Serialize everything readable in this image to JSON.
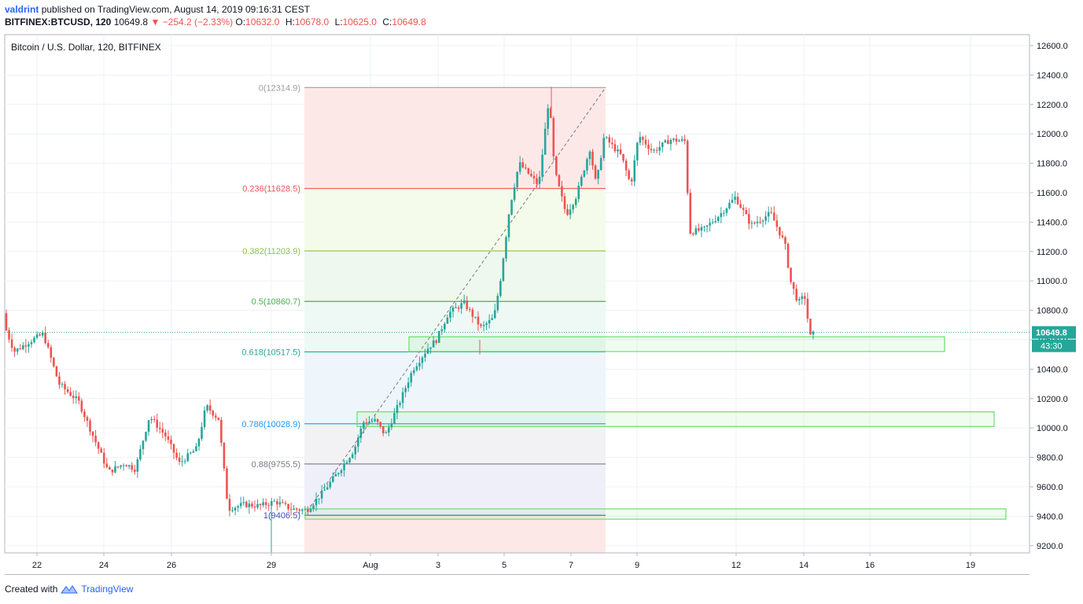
{
  "header": {
    "author": "valdrint",
    "published_text": "published on TradingView.com, August 14, 2019 09:16:31 CEST",
    "symbol": "BITFINEX:BTCUSD, 120",
    "last": "10649.8",
    "change": "−254.2 (−2.33%)",
    "open_label": "O:",
    "open": "10632.0",
    "high_label": "H:",
    "high": "10678.0",
    "low_label": "L:",
    "low": "10625.0",
    "close_label": "C:",
    "close": "10649.8"
  },
  "footer": {
    "created_with": "Created with",
    "brand": "TradingView"
  },
  "chart_data": {
    "type": "candlestick",
    "title": "Bitcoin / U.S. Dollar, 120, BITFINEX",
    "x_tick_labels": [
      "22",
      "24",
      "26",
      "29",
      "Aug",
      "3",
      "5",
      "7",
      "9",
      "12",
      "14",
      "16",
      "19"
    ],
    "y_tick_labels": [
      "12600.0",
      "12400.0",
      "12200.0",
      "12000.0",
      "11800.0",
      "11600.0",
      "11400.0",
      "11200.0",
      "11000.0",
      "10800.0",
      "10600.0",
      "10400.0",
      "10200.0",
      "10000.0",
      "9800.0",
      "9600.0",
      "9400.0",
      "9200.0"
    ],
    "ylim": [
      9140,
      12670
    ],
    "grid": true,
    "last_price": 10649.8,
    "last_price_label": "10649.8",
    "countdown_label": "43:30",
    "price_path": [
      [
        0,
        10780
      ],
      [
        18,
        10520
      ],
      [
        38,
        10590
      ],
      [
        55,
        10640
      ],
      [
        75,
        10300
      ],
      [
        100,
        10180
      ],
      [
        118,
        9950
      ],
      [
        138,
        9700
      ],
      [
        158,
        9760
      ],
      [
        172,
        9720
      ],
      [
        190,
        10080
      ],
      [
        210,
        9950
      ],
      [
        228,
        9760
      ],
      [
        250,
        9860
      ],
      [
        262,
        10150
      ],
      [
        278,
        10060
      ],
      [
        290,
        9450
      ],
      [
        310,
        9480
      ],
      [
        330,
        9470
      ],
      [
        350,
        9500
      ],
      [
        370,
        9450
      ],
      [
        390,
        9440
      ],
      [
        410,
        9560
      ],
      [
        430,
        9700
      ],
      [
        450,
        9850
      ],
      [
        462,
        10040
      ],
      [
        478,
        10050
      ],
      [
        490,
        9950
      ],
      [
        510,
        10200
      ],
      [
        525,
        10400
      ],
      [
        545,
        10550
      ],
      [
        555,
        10600
      ],
      [
        570,
        10780
      ],
      [
        590,
        10850
      ],
      [
        612,
        10680
      ],
      [
        628,
        10750
      ],
      [
        636,
        11000
      ],
      [
        648,
        11500
      ],
      [
        660,
        11800
      ],
      [
        685,
        11650
      ],
      [
        698,
        12250
      ],
      [
        705,
        11750
      ],
      [
        720,
        11450
      ],
      [
        733,
        11580
      ],
      [
        750,
        11900
      ],
      [
        758,
        11650
      ],
      [
        768,
        11980
      ],
      [
        790,
        11850
      ],
      [
        802,
        11650
      ],
      [
        812,
        11990
      ],
      [
        830,
        11880
      ],
      [
        852,
        11960
      ],
      [
        872,
        11950
      ],
      [
        876,
        11330
      ],
      [
        895,
        11350
      ],
      [
        915,
        11450
      ],
      [
        935,
        11570
      ],
      [
        955,
        11380
      ],
      [
        980,
        11460
      ],
      [
        998,
        11250
      ],
      [
        1005,
        11000
      ],
      [
        1015,
        10850
      ],
      [
        1023,
        10900
      ],
      [
        1030,
        10620
      ],
      [
        1037,
        10650
      ]
    ],
    "fibonacci": {
      "levels": [
        {
          "ratio": "0",
          "price": 12314.9,
          "label": "0(12314.9)",
          "color": "#9e9e9e"
        },
        {
          "ratio": "0.236",
          "price": 11628.5,
          "label": "0.236(11628.5)",
          "color": "#ef5350"
        },
        {
          "ratio": "0.382",
          "price": 11203.9,
          "label": "0.382(11203.9)",
          "color": "#8bc34a"
        },
        {
          "ratio": "0.5",
          "price": 10860.7,
          "label": "0.5(10860.7)",
          "color": "#4caf50"
        },
        {
          "ratio": "0.618",
          "price": 10517.5,
          "label": "0.618(10517.5)",
          "color": "#26a69a"
        },
        {
          "ratio": "0.786",
          "price": 10028.9,
          "label": "0.786(10028.9)",
          "color": "#2196f3"
        },
        {
          "ratio": "0.88",
          "price": 9755.5,
          "label": "0.88(9755.5)",
          "color": "#787b86"
        },
        {
          "ratio": "1",
          "price": 9406.5,
          "label": "1(9406.5)",
          "color": "#3f51b5"
        }
      ],
      "bands": [
        "#fde8e8",
        "#f4fbea",
        "#eef8ee",
        "#eef8f5",
        "#eef6fc",
        "#f2f2f4",
        "#eeeff9"
      ]
    },
    "support_zones": [
      {
        "low": 10520,
        "high": 10620
      },
      {
        "low": 10010,
        "high": 10110
      },
      {
        "low": 9380,
        "high": 9450
      }
    ],
    "colors": {
      "up": "#26a69a",
      "down": "#ef5350",
      "zone": "#69e06a",
      "price_line": "#26a69a"
    }
  }
}
